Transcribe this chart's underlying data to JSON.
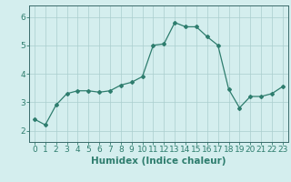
{
  "x": [
    0,
    1,
    2,
    3,
    4,
    5,
    6,
    7,
    8,
    9,
    10,
    11,
    12,
    13,
    14,
    15,
    16,
    17,
    18,
    19,
    20,
    21,
    22,
    23
  ],
  "y": [
    2.4,
    2.2,
    2.9,
    3.3,
    3.4,
    3.4,
    3.35,
    3.4,
    3.6,
    3.7,
    3.9,
    5.0,
    5.05,
    5.8,
    5.65,
    5.65,
    5.3,
    5.0,
    3.45,
    2.8,
    3.2,
    3.2,
    3.3,
    3.55
  ],
  "line_color": "#2e7d6e",
  "marker": "D",
  "marker_size": 2,
  "bg_color": "#d4eeee",
  "grid_color": "#aacece",
  "xlabel": "Humidex (Indice chaleur)",
  "ylim": [
    1.6,
    6.4
  ],
  "xlim": [
    -0.5,
    23.5
  ],
  "yticks": [
    2,
    3,
    4,
    5,
    6
  ],
  "xticks": [
    0,
    1,
    2,
    3,
    4,
    5,
    6,
    7,
    8,
    9,
    10,
    11,
    12,
    13,
    14,
    15,
    16,
    17,
    18,
    19,
    20,
    21,
    22,
    23
  ],
  "tick_color": "#2e7d6e",
  "label_color": "#2e7d6e",
  "xlabel_fontsize": 7.5,
  "tick_fontsize": 6.5,
  "axis_bg": "#3a6a6a",
  "spine_color": "#3a6a6a"
}
